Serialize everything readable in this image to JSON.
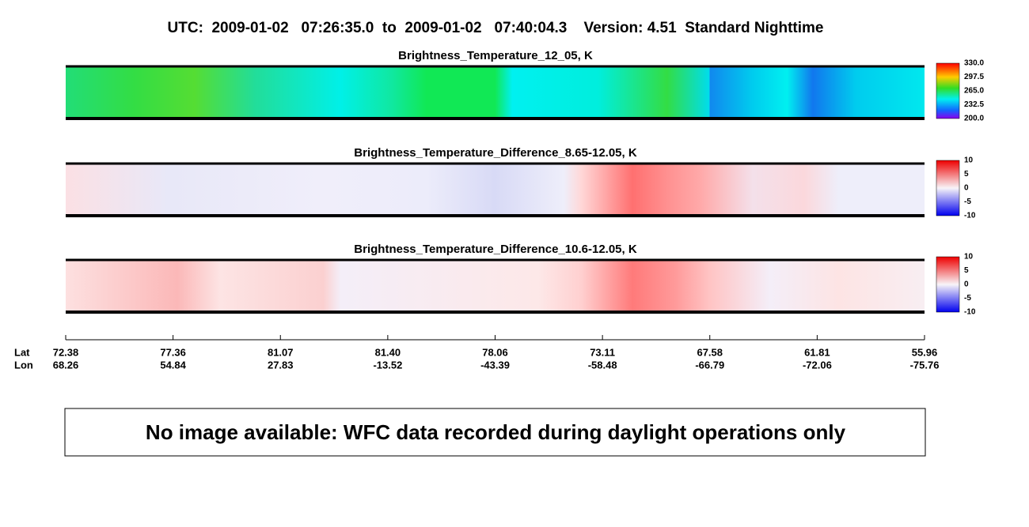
{
  "title": "UTC:  2009-01-02   07:26:35.0  to  2009-01-02   07:40:04.3    Version: 4.51  Standard Nighttime",
  "panels": [
    {
      "title": "Brightness_Temperature_12_05, K",
      "colorbar_ticks": [
        "330.0",
        "297.5",
        "265.0",
        "232.5",
        "200.0"
      ]
    },
    {
      "title": "Brightness_Temperature_Difference_8.65-12.05, K",
      "colorbar_ticks": [
        "10",
        "5",
        "0",
        "-5",
        "-10"
      ]
    },
    {
      "title": "Brightness_Temperature_Difference_10.6-12.05, K",
      "colorbar_ticks": [
        "10",
        "5",
        "0",
        "-5",
        "-10"
      ]
    }
  ],
  "axis": {
    "lat_label": "Lat",
    "lon_label": "Lon",
    "lat": [
      "72.38",
      "77.36",
      "81.07",
      "81.40",
      "78.06",
      "73.11",
      "67.58",
      "61.81",
      "55.96"
    ],
    "lon": [
      "68.26",
      "54.84",
      "27.83",
      "-13.52",
      "-43.39",
      "-58.48",
      "-66.79",
      "-72.06",
      "-75.76"
    ]
  },
  "message": "No image available: WFC data recorded during daylight operations only"
}
